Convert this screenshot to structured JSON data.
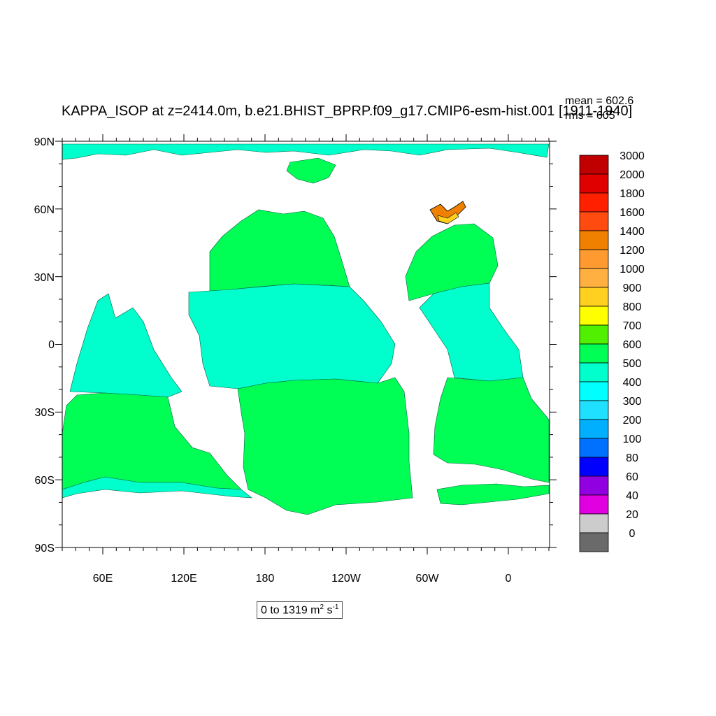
{
  "title": "KAPPA_ISOP at z=2414.0m, b.e21.BHIST_BPRP.f09_g17.CMIP6-esm-hist.001 [1911-1940]",
  "stats": {
    "mean": "mean = 602.6",
    "rms": "rms = 605"
  },
  "range_label": {
    "text": "0 to 1319 m",
    "sup1": "2",
    "mid": " s",
    "sup2": "-1"
  },
  "axes": {
    "y_ticks": [
      "90N",
      "60N",
      "30N",
      "0",
      "30S",
      "60S",
      "90S"
    ],
    "x_ticks": [
      "60E",
      "120E",
      "180",
      "120W",
      "60W",
      "0"
    ]
  },
  "colorbar": {
    "levels": [
      "3000",
      "2000",
      "1800",
      "1600",
      "1400",
      "1200",
      "1000",
      "900",
      "800",
      "700",
      "600",
      "500",
      "400",
      "300",
      "200",
      "100",
      "80",
      "60",
      "40",
      "20",
      "0"
    ],
    "colors": [
      "#c00000",
      "#e00000",
      "#ff2000",
      "#ff4a10",
      "#f08000",
      "#ff9a30",
      "#ffb040",
      "#ffd020",
      "#ffff00",
      "#50f000",
      "#00ff55",
      "#00ffcc",
      "#00ffff",
      "#20e0ff",
      "#00b0ff",
      "#0070ff",
      "#0000ff",
      "#9000e0",
      "#e000e0",
      "#cccccc",
      "#6a6a6a"
    ]
  },
  "map_colors": {
    "ocean_500_600": "#00ffcc",
    "ocean_600_700": "#00ff55",
    "land": "#ffffff"
  }
}
